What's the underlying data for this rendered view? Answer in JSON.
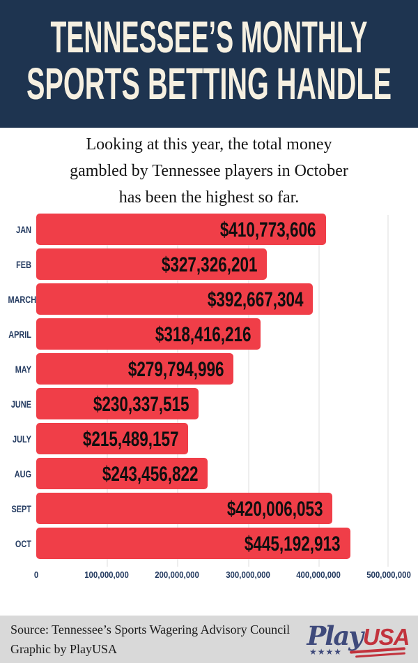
{
  "header": {
    "title_line1": "TENNESSEE’S MONTHLY",
    "title_line2": "SPORTS BETTING HANDLE"
  },
  "subtitle": "Looking at this year, the total money\ngambled by Tennessee players in October\nhas been the highest so far.",
  "chart_data": {
    "type": "bar",
    "orientation": "horizontal",
    "title": "Tennessee’s Monthly Sports Betting Handle",
    "categories": [
      "JAN",
      "FEB",
      "MARCH",
      "APRIL",
      "MAY",
      "JUNE",
      "JULY",
      "AUG",
      "SEPT",
      "OCT"
    ],
    "values": [
      410773606,
      327326201,
      392667304,
      318416216,
      279794996,
      230337515,
      215489157,
      243456822,
      420006053,
      445192913
    ],
    "value_labels": [
      "$410,773,606",
      "$327,326,201",
      "$392,667,304",
      "$318,416,216",
      "$279,794,996",
      "$230,337,515",
      "$215,489,157",
      "$243,456,822",
      "$420,006,053",
      "$445,192,913"
    ],
    "x_ticks": [
      "0",
      "100,000,000",
      "200,000,000",
      "300,000,000",
      "400,000,000",
      "500,000,000"
    ],
    "xlim": [
      0,
      500000000
    ],
    "grid": true,
    "legend": false,
    "bar_color": "#f03e48"
  },
  "footer": {
    "source_text": "Source:  Tennessee’s Sports Wagering Advisory Council\nGraphic by PlayUSA",
    "logo": {
      "play": "Play",
      "usa": "USA",
      "stars": "★★★★"
    }
  },
  "colors": {
    "header_bg": "#1e3450",
    "cream_text": "#f6f0e1",
    "bar_red": "#f03e48",
    "navy_text": "#233a60",
    "footer_bg": "#d9d9d9"
  }
}
